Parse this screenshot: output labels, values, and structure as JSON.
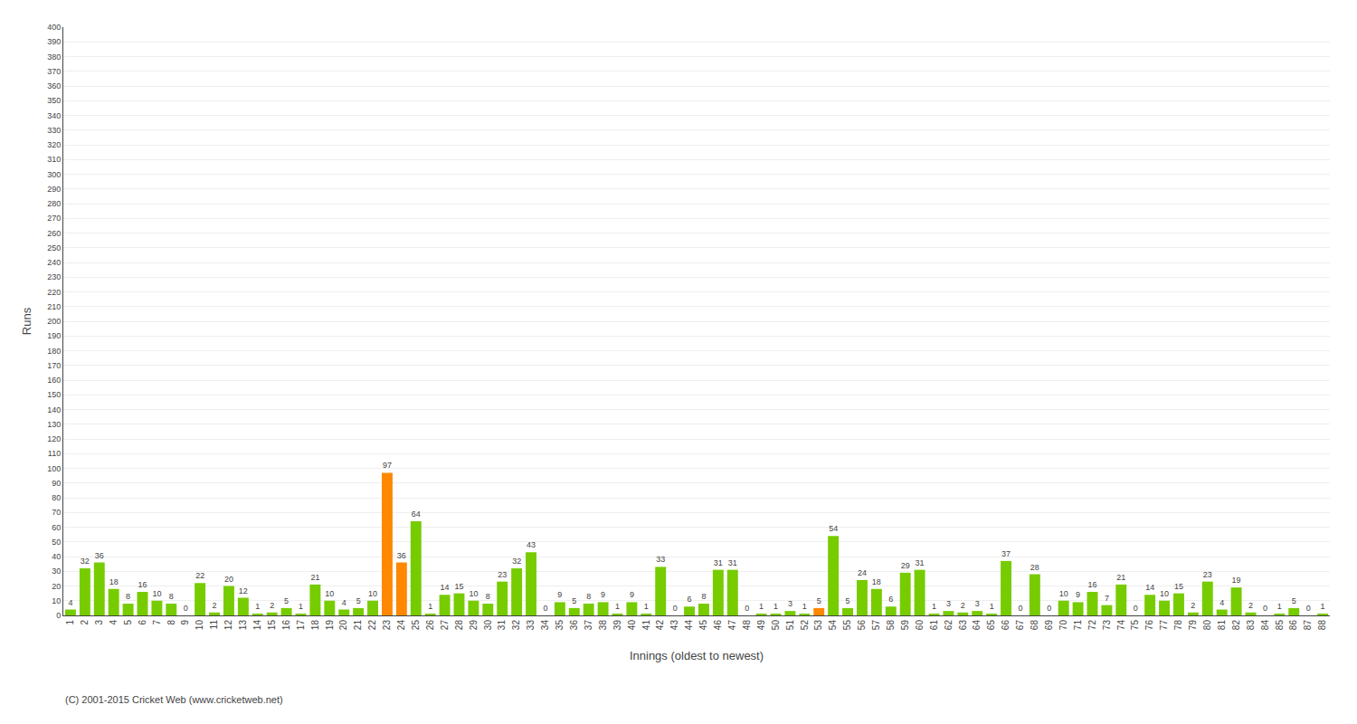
{
  "chart_data": {
    "type": "bar",
    "categories": [
      "1",
      "2",
      "3",
      "4",
      "5",
      "6",
      "7",
      "8",
      "9",
      "10",
      "11",
      "12",
      "13",
      "14",
      "15",
      "16",
      "17",
      "18",
      "19",
      "20",
      "21",
      "22",
      "23",
      "24",
      "25",
      "26",
      "27",
      "28",
      "29",
      "30",
      "31",
      "32",
      "33",
      "34",
      "35",
      "36",
      "37",
      "38",
      "39",
      "40",
      "41",
      "42",
      "43",
      "44",
      "45",
      "46",
      "47",
      "48",
      "49",
      "50",
      "51",
      "52",
      "53",
      "54",
      "55",
      "56",
      "57",
      "58",
      "59",
      "60",
      "61",
      "62",
      "63",
      "64",
      "65",
      "66",
      "67",
      "68",
      "69",
      "70",
      "71",
      "72",
      "73",
      "74",
      "75",
      "76",
      "77",
      "78",
      "79",
      "80",
      "81",
      "82",
      "83",
      "84",
      "85",
      "86",
      "87",
      "88"
    ],
    "values": [
      4,
      32,
      36,
      18,
      8,
      16,
      10,
      8,
      0,
      22,
      2,
      20,
      12,
      1,
      2,
      5,
      1,
      21,
      10,
      4,
      5,
      10,
      97,
      36,
      64,
      1,
      14,
      15,
      10,
      8,
      23,
      32,
      43,
      0,
      9,
      5,
      8,
      9,
      1,
      9,
      1,
      33,
      0,
      6,
      8,
      31,
      31,
      0,
      1,
      1,
      3,
      1,
      5,
      54,
      5,
      24,
      18,
      6,
      29,
      31,
      1,
      3,
      2,
      3,
      1,
      37,
      0,
      28,
      0,
      10,
      9,
      16,
      7,
      21,
      0,
      14,
      10,
      15,
      2,
      23,
      4,
      19,
      2,
      0,
      1,
      5,
      0,
      1
    ],
    "colors": [
      "#77cc00",
      "#77cc00",
      "#77cc00",
      "#77cc00",
      "#77cc00",
      "#77cc00",
      "#77cc00",
      "#77cc00",
      "#77cc00",
      "#77cc00",
      "#77cc00",
      "#77cc00",
      "#77cc00",
      "#77cc00",
      "#77cc00",
      "#77cc00",
      "#77cc00",
      "#77cc00",
      "#77cc00",
      "#77cc00",
      "#77cc00",
      "#77cc00",
      "#ff8800",
      "#ff8800",
      "#77cc00",
      "#77cc00",
      "#77cc00",
      "#77cc00",
      "#77cc00",
      "#77cc00",
      "#77cc00",
      "#77cc00",
      "#77cc00",
      "#77cc00",
      "#77cc00",
      "#77cc00",
      "#77cc00",
      "#77cc00",
      "#77cc00",
      "#77cc00",
      "#77cc00",
      "#77cc00",
      "#77cc00",
      "#77cc00",
      "#77cc00",
      "#77cc00",
      "#77cc00",
      "#77cc00",
      "#77cc00",
      "#77cc00",
      "#77cc00",
      "#77cc00",
      "#ff8800",
      "#77cc00",
      "#77cc00",
      "#77cc00",
      "#77cc00",
      "#77cc00",
      "#77cc00",
      "#77cc00",
      "#77cc00",
      "#77cc00",
      "#77cc00",
      "#77cc00",
      "#77cc00",
      "#77cc00",
      "#77cc00",
      "#77cc00",
      "#77cc00",
      "#77cc00",
      "#77cc00",
      "#77cc00",
      "#77cc00",
      "#77cc00",
      "#77cc00",
      "#77cc00",
      "#77cc00",
      "#77cc00",
      "#77cc00",
      "#77cc00",
      "#77cc00",
      "#77cc00",
      "#77cc00",
      "#77cc00",
      "#77cc00",
      "#77cc00",
      "#77cc00",
      "#77cc00"
    ],
    "x_label": "Innings (oldest to newest)",
    "y_label": "Runs",
    "ylim": [
      0,
      400
    ],
    "yticks": [
      0,
      10,
      20,
      30,
      40,
      50,
      60,
      70,
      80,
      90,
      100,
      110,
      120,
      130,
      140,
      150,
      160,
      170,
      180,
      190,
      200,
      210,
      220,
      230,
      240,
      250,
      260,
      270,
      280,
      290,
      300,
      310,
      320,
      330,
      340,
      350,
      360,
      370,
      380,
      390,
      400
    ],
    "grid": true,
    "data_labels": true,
    "annotations": [
      "(C) 2001-2015 Cricket Web (www.cricketweb.net)"
    ]
  }
}
